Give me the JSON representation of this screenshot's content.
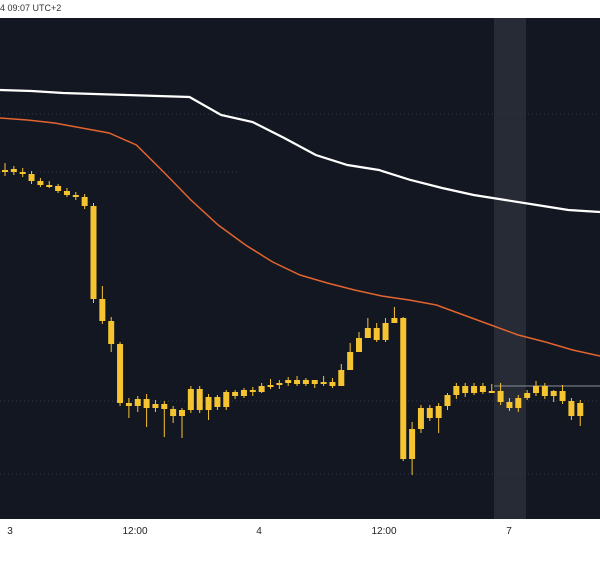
{
  "header": {
    "timestamp": "4 09:07 UTC+2"
  },
  "colors": {
    "background": "#131722",
    "candle": "#f6c431",
    "ma_long": "#ffffff",
    "ma_short": "#e2642f",
    "grid": "#343a4a",
    "hover_band": "#272b36"
  },
  "chart_data": {
    "type": "candlestick",
    "title": "",
    "xlabel": "",
    "ylabel": "",
    "x_ticks": [
      "3",
      "12:00",
      "4",
      "12:00",
      "7"
    ],
    "grid": "dotted horizontal",
    "series": [
      {
        "type": "candlestick",
        "values": [
          [
            172,
            170,
            176,
            163
          ],
          [
            169,
            172,
            175,
            166
          ],
          [
            172,
            174,
            177,
            168
          ],
          [
            174,
            181,
            184,
            171
          ],
          [
            181,
            185,
            187,
            178
          ],
          [
            185,
            186,
            188,
            181
          ],
          [
            186,
            191,
            193,
            184
          ],
          [
            191,
            195,
            197,
            188
          ],
          [
            195,
            197,
            200,
            192
          ],
          [
            197,
            206,
            209,
            194
          ],
          [
            206,
            299,
            303,
            203
          ],
          [
            299,
            321,
            324,
            286
          ],
          [
            321,
            344,
            352,
            317
          ],
          [
            344,
            403,
            406,
            342
          ],
          [
            403,
            406,
            418,
            398
          ],
          [
            406,
            399,
            412,
            396
          ],
          [
            399,
            408,
            427,
            394
          ],
          [
            408,
            404,
            412,
            400
          ],
          [
            404,
            409,
            437,
            401
          ],
          [
            409,
            416,
            423,
            406
          ],
          [
            416,
            410,
            438,
            408
          ],
          [
            410,
            389,
            413,
            386
          ],
          [
            389,
            410,
            413,
            386
          ],
          [
            410,
            397,
            420,
            394
          ],
          [
            397,
            407,
            410,
            395
          ],
          [
            407,
            392,
            410,
            390
          ],
          [
            392,
            396,
            399,
            390
          ],
          [
            396,
            390,
            398,
            388
          ],
          [
            390,
            392,
            396,
            387
          ],
          [
            392,
            386,
            393,
            383
          ],
          [
            386,
            385,
            389,
            379
          ],
          [
            385,
            383,
            389,
            380
          ],
          [
            383,
            380,
            386,
            377
          ],
          [
            380,
            384,
            386,
            376
          ],
          [
            384,
            380,
            386,
            378
          ],
          [
            380,
            384,
            388,
            380
          ],
          [
            384,
            382,
            386,
            376
          ],
          [
            382,
            386,
            388,
            378
          ],
          [
            386,
            370,
            377,
            364
          ],
          [
            370,
            352,
            356,
            343
          ],
          [
            352,
            338,
            343,
            332
          ],
          [
            338,
            328,
            333,
            318
          ],
          [
            328,
            340,
            342,
            323
          ],
          [
            340,
            323,
            342,
            318
          ],
          [
            323,
            318,
            323,
            307
          ],
          [
            318,
            459,
            461,
            317
          ],
          [
            459,
            429,
            475,
            422
          ],
          [
            429,
            408,
            433,
            405
          ],
          [
            408,
            418,
            421,
            405
          ],
          [
            418,
            406,
            433,
            403
          ],
          [
            406,
            395,
            410,
            393
          ],
          [
            395,
            386,
            399,
            383
          ],
          [
            386,
            393,
            397,
            383
          ],
          [
            393,
            386,
            395,
            383
          ],
          [
            386,
            392,
            394,
            383
          ],
          [
            392,
            391,
            393,
            384
          ],
          [
            391,
            402,
            405,
            383
          ],
          [
            402,
            408,
            411,
            398
          ],
          [
            408,
            398,
            412,
            395
          ],
          [
            398,
            393,
            400,
            390
          ],
          [
            393,
            386,
            396,
            381
          ],
          [
            386,
            396,
            399,
            383
          ],
          [
            396,
            391,
            402,
            390
          ],
          [
            391,
            401,
            404,
            385
          ],
          [
            401,
            416,
            420,
            398
          ],
          [
            416,
            403,
            426,
            400
          ]
        ]
      },
      {
        "type": "line",
        "name": "",
        "values": [
          90,
          91,
          93,
          94,
          95,
          96,
          97,
          115,
          122,
          138,
          155,
          165,
          170,
          180,
          188,
          195,
          200,
          205,
          210,
          212
        ]
      },
      {
        "type": "line",
        "name": "",
        "values": [
          118,
          120,
          123,
          128,
          133,
          145,
          172,
          200,
          225,
          245,
          262,
          275,
          283,
          290,
          296,
          300,
          305,
          315,
          325,
          335,
          342,
          350,
          356
        ]
      }
    ]
  }
}
